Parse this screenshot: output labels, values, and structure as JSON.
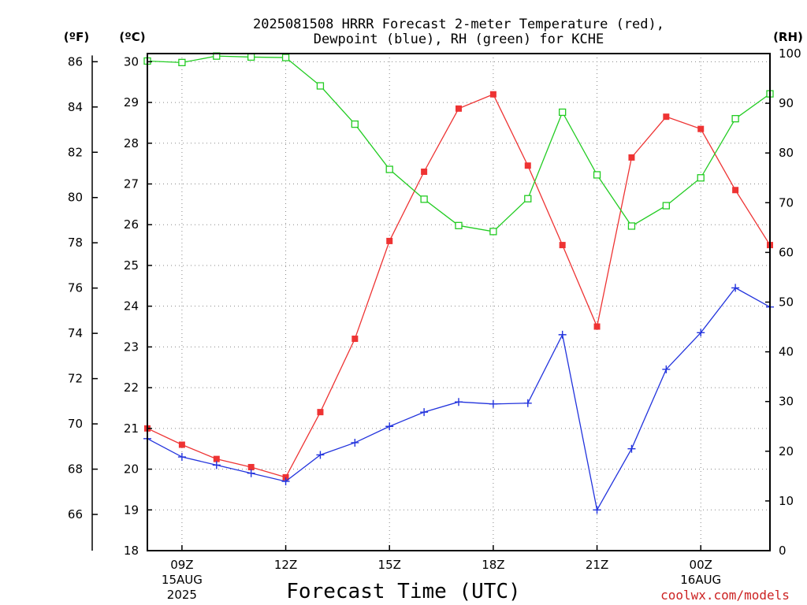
{
  "chart_data": {
    "type": "line",
    "title": "2025081508 HRRR Forecast 2-meter Temperature (red),",
    "subtitle": "Dewpoint (blue), RH (green) for KCHE",
    "xlabel": "Forecast Time (UTC)",
    "watermark": "coolwx.com/models",
    "units": {
      "fahrenheit": "(ºF)",
      "celsius": "(ºC)",
      "rh": "(RH)"
    },
    "x_hours": [
      8,
      9,
      10,
      11,
      12,
      13,
      14,
      15,
      16,
      17,
      18,
      19,
      20,
      21,
      22,
      23,
      24,
      25,
      26
    ],
    "x_ticks": [
      {
        "hour": 9,
        "labels": [
          "09Z",
          "15AUG",
          "2025"
        ]
      },
      {
        "hour": 12,
        "labels": [
          "12Z"
        ]
      },
      {
        "hour": 15,
        "labels": [
          "15Z"
        ]
      },
      {
        "hour": 18,
        "labels": [
          "18Z"
        ]
      },
      {
        "hour": 21,
        "labels": [
          "21Z"
        ]
      },
      {
        "hour": 24,
        "labels": [
          "00Z",
          "16AUG"
        ]
      }
    ],
    "xlim": [
      8,
      26
    ],
    "celsius_axis": {
      "ylim": [
        18,
        30.2
      ],
      "ticks": [
        "18",
        "19",
        "20",
        "21",
        "22",
        "23",
        "24",
        "25",
        "26",
        "27",
        "28",
        "29",
        "30"
      ]
    },
    "fahrenheit_axis": {
      "ticks": [
        "66",
        "68",
        "70",
        "72",
        "74",
        "76",
        "78",
        "80",
        "82",
        "84",
        "86"
      ]
    },
    "rh_axis": {
      "ylim": [
        0,
        100
      ],
      "ticks": [
        "0",
        "10",
        "20",
        "30",
        "40",
        "50",
        "60",
        "70",
        "80",
        "90",
        "100"
      ]
    },
    "grid": true,
    "series": [
      {
        "name": "Temperature",
        "axis": "celsius",
        "color": "#ee3333",
        "marker": "filled-square",
        "values": [
          21.0,
          20.6,
          20.25,
          20.05,
          19.8,
          21.4,
          23.2,
          25.6,
          27.3,
          28.85,
          29.2,
          27.45,
          25.5,
          23.5,
          27.65,
          28.65,
          28.35,
          26.85,
          25.5
        ]
      },
      {
        "name": "Dewpoint",
        "axis": "celsius",
        "color": "#2233dd",
        "marker": "plus",
        "values": [
          20.75,
          20.3,
          20.1,
          19.9,
          19.7,
          20.35,
          20.65,
          21.05,
          21.4,
          21.65,
          21.6,
          21.62,
          23.3,
          19.0,
          20.5,
          22.45,
          23.35,
          24.45,
          23.98
        ]
      },
      {
        "name": "RH",
        "axis": "rh",
        "color": "#22cc22",
        "marker": "open-square",
        "values": [
          98.5,
          98.2,
          99.5,
          99.3,
          99.2,
          93.5,
          85.8,
          76.7,
          70.7,
          65.4,
          64.2,
          70.8,
          88.2,
          75.6,
          65.3,
          69.4,
          75.0,
          86.9,
          91.9
        ]
      }
    ]
  }
}
